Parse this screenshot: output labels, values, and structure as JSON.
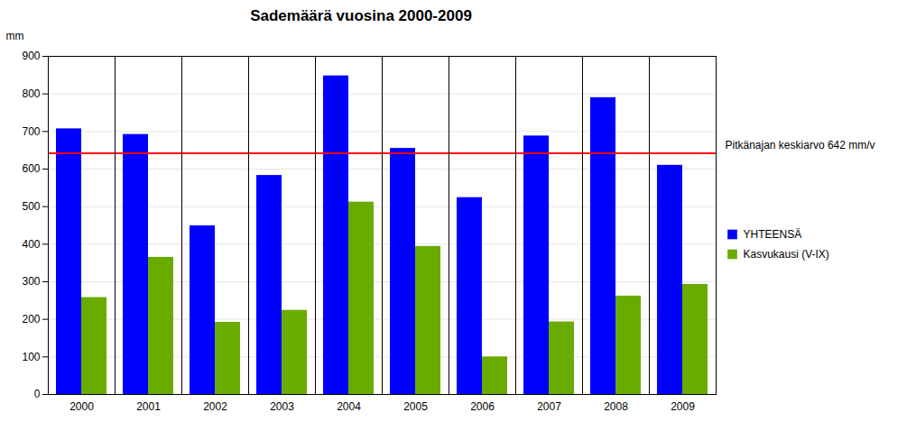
{
  "chart_data": {
    "type": "bar",
    "title": "Sademäärä vuosina 2000-2009",
    "categories": [
      "2000",
      "2001",
      "2002",
      "2003",
      "2004",
      "2005",
      "2006",
      "2007",
      "2008",
      "2009"
    ],
    "series": [
      {
        "name": "YHTEENSÄ",
        "color": "#0000FF",
        "values": [
          707,
          692,
          449,
          583,
          848,
          655,
          524,
          688,
          790,
          610
        ]
      },
      {
        "name": "Kasvukausi (V-IX)",
        "color": "#6AAB00",
        "values": [
          258,
          365,
          192,
          224,
          512,
          394,
          100,
          193,
          262,
          293
        ]
      }
    ],
    "ylabel": "mm",
    "ylim": [
      0,
      900
    ],
    "yticks": [
      0,
      100,
      200,
      300,
      400,
      500,
      600,
      700,
      800,
      900
    ],
    "grid": true,
    "legend": "right",
    "annotations": [
      {
        "type": "hline",
        "y": 642,
        "text": "Pitkänajan keskiarvo 642 mm/v",
        "color": "#FF0000"
      }
    ]
  }
}
